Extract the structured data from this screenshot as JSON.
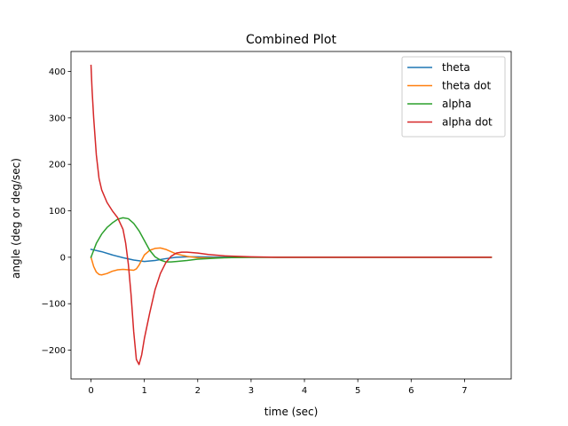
{
  "chart_data": {
    "type": "line",
    "title": "Combined Plot",
    "xlabel": "time (sec)",
    "ylabel": "angle (deg or deg/sec)",
    "xlim": [
      -0.375,
      7.875
    ],
    "ylim": [
      -262,
      443
    ],
    "xticks": [
      0,
      1,
      2,
      3,
      4,
      5,
      6,
      7
    ],
    "yticks": [
      -200,
      -100,
      0,
      100,
      200,
      300,
      400
    ],
    "ytick_labels": [
      "−200",
      "−100",
      "0",
      "100",
      "200",
      "300",
      "400"
    ],
    "grid": false,
    "legend_position": "top-right",
    "series": [
      {
        "name": "theta",
        "color": "#1f77b4",
        "x": [
          0,
          0.2,
          0.4,
          0.6,
          0.8,
          1.0,
          1.2,
          1.4,
          1.6,
          1.8,
          2.0,
          2.5,
          3.0,
          4.0,
          5.0,
          6.0,
          7.0,
          7.5
        ],
        "y": [
          17,
          12,
          5,
          -1,
          -6,
          -9,
          -7,
          -3,
          0,
          1,
          1,
          0.3,
          0,
          0,
          0,
          0,
          0,
          0
        ]
      },
      {
        "name": "theta dot",
        "color": "#ff7f0e",
        "x": [
          0,
          0.05,
          0.1,
          0.15,
          0.2,
          0.3,
          0.4,
          0.5,
          0.6,
          0.7,
          0.8,
          0.85,
          0.9,
          1.0,
          1.1,
          1.2,
          1.3,
          1.4,
          1.5,
          1.6,
          1.8,
          2.0,
          2.2,
          2.5,
          3.0,
          4.0,
          5.0,
          6.0,
          7.0,
          7.5
        ],
        "y": [
          0,
          -20,
          -32,
          -37,
          -38,
          -35,
          -30,
          -27,
          -26,
          -27,
          -28,
          -25,
          -17,
          5,
          15,
          19,
          20,
          17,
          12,
          7,
          2,
          -1,
          -1.5,
          -1,
          0,
          0,
          0,
          0,
          0,
          0
        ]
      },
      {
        "name": "alpha",
        "color": "#2ca02c",
        "x": [
          0,
          0.05,
          0.1,
          0.2,
          0.3,
          0.4,
          0.5,
          0.6,
          0.7,
          0.8,
          0.9,
          1.0,
          1.1,
          1.2,
          1.3,
          1.4,
          1.5,
          1.6,
          1.8,
          2.0,
          2.5,
          3.0,
          3.5,
          4.0,
          5.0,
          6.0,
          7.0,
          7.5
        ],
        "y": [
          0,
          15,
          30,
          50,
          64,
          74,
          82,
          85,
          83,
          73,
          57,
          36,
          15,
          1,
          -6,
          -10,
          -10,
          -9,
          -7,
          -4,
          -1,
          0,
          0,
          0,
          0,
          0,
          0,
          0
        ]
      },
      {
        "name": "alpha dot",
        "color": "#d62728",
        "x": [
          0,
          0.02,
          0.05,
          0.1,
          0.15,
          0.2,
          0.3,
          0.4,
          0.5,
          0.6,
          0.65,
          0.7,
          0.75,
          0.8,
          0.85,
          0.9,
          0.95,
          1.0,
          1.1,
          1.2,
          1.3,
          1.4,
          1.5,
          1.6,
          1.7,
          1.8,
          2.0,
          2.2,
          2.5,
          3.0,
          3.5,
          4.0,
          5.0,
          6.0,
          7.0,
          7.5
        ],
        "y": [
          413,
          360,
          300,
          220,
          170,
          145,
          118,
          100,
          85,
          60,
          30,
          -15,
          -80,
          -160,
          -220,
          -231,
          -210,
          -175,
          -120,
          -70,
          -35,
          -12,
          2,
          9,
          11,
          11,
          9,
          6,
          3,
          1,
          0,
          0,
          0,
          0,
          0,
          0
        ]
      }
    ]
  }
}
